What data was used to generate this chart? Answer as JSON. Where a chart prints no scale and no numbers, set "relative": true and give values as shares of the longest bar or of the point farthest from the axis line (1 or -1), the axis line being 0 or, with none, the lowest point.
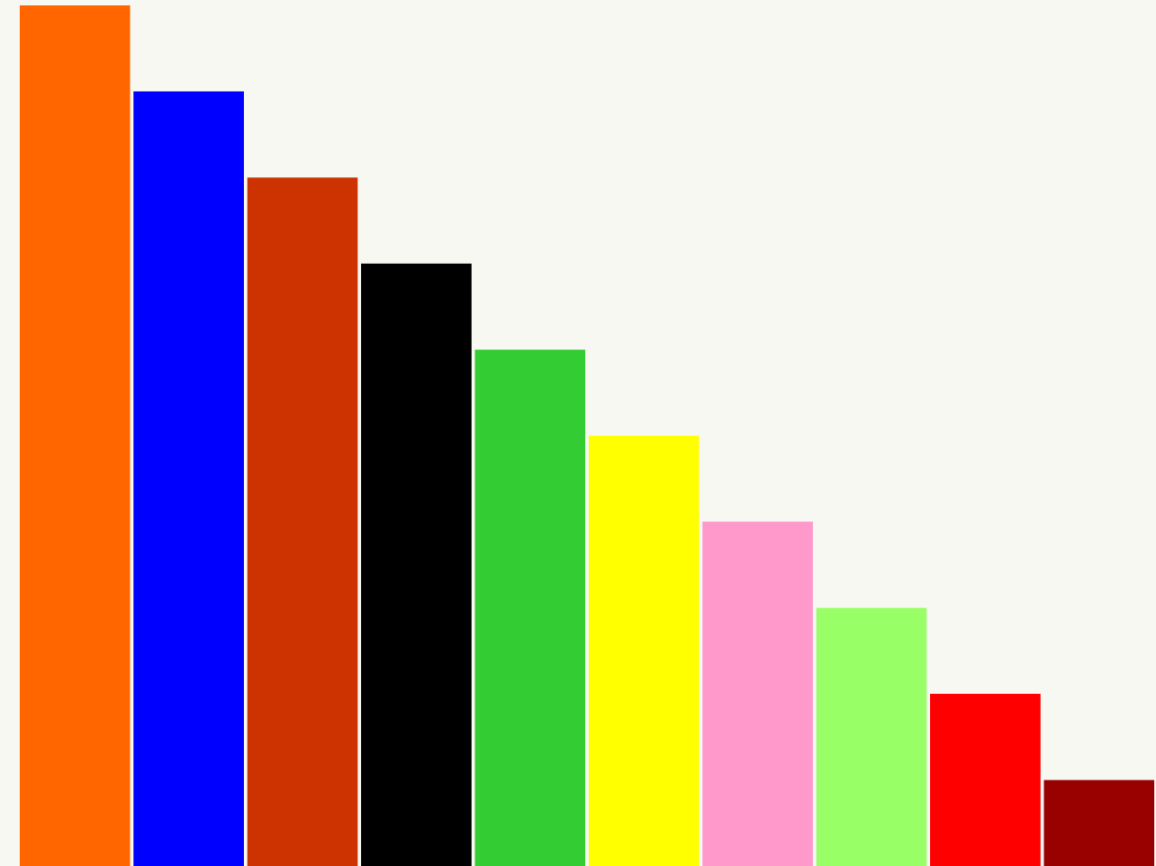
{
  "chart_data": {
    "type": "bar",
    "relative": true,
    "categories": [
      null,
      null,
      null,
      null,
      null,
      null,
      null,
      null,
      null,
      null
    ],
    "values": [
      1,
      0.9,
      0.8,
      0.7,
      0.6,
      0.5,
      0.4,
      0.3,
      0.2,
      0.1
    ],
    "colors": [
      "#ff6600",
      "#0000ff",
      "#cc3300",
      "#000000",
      "#33cc33",
      "#ffff00",
      "#ff99cc",
      "#99ff66",
      "#ff0000",
      "#990000"
    ]
  }
}
